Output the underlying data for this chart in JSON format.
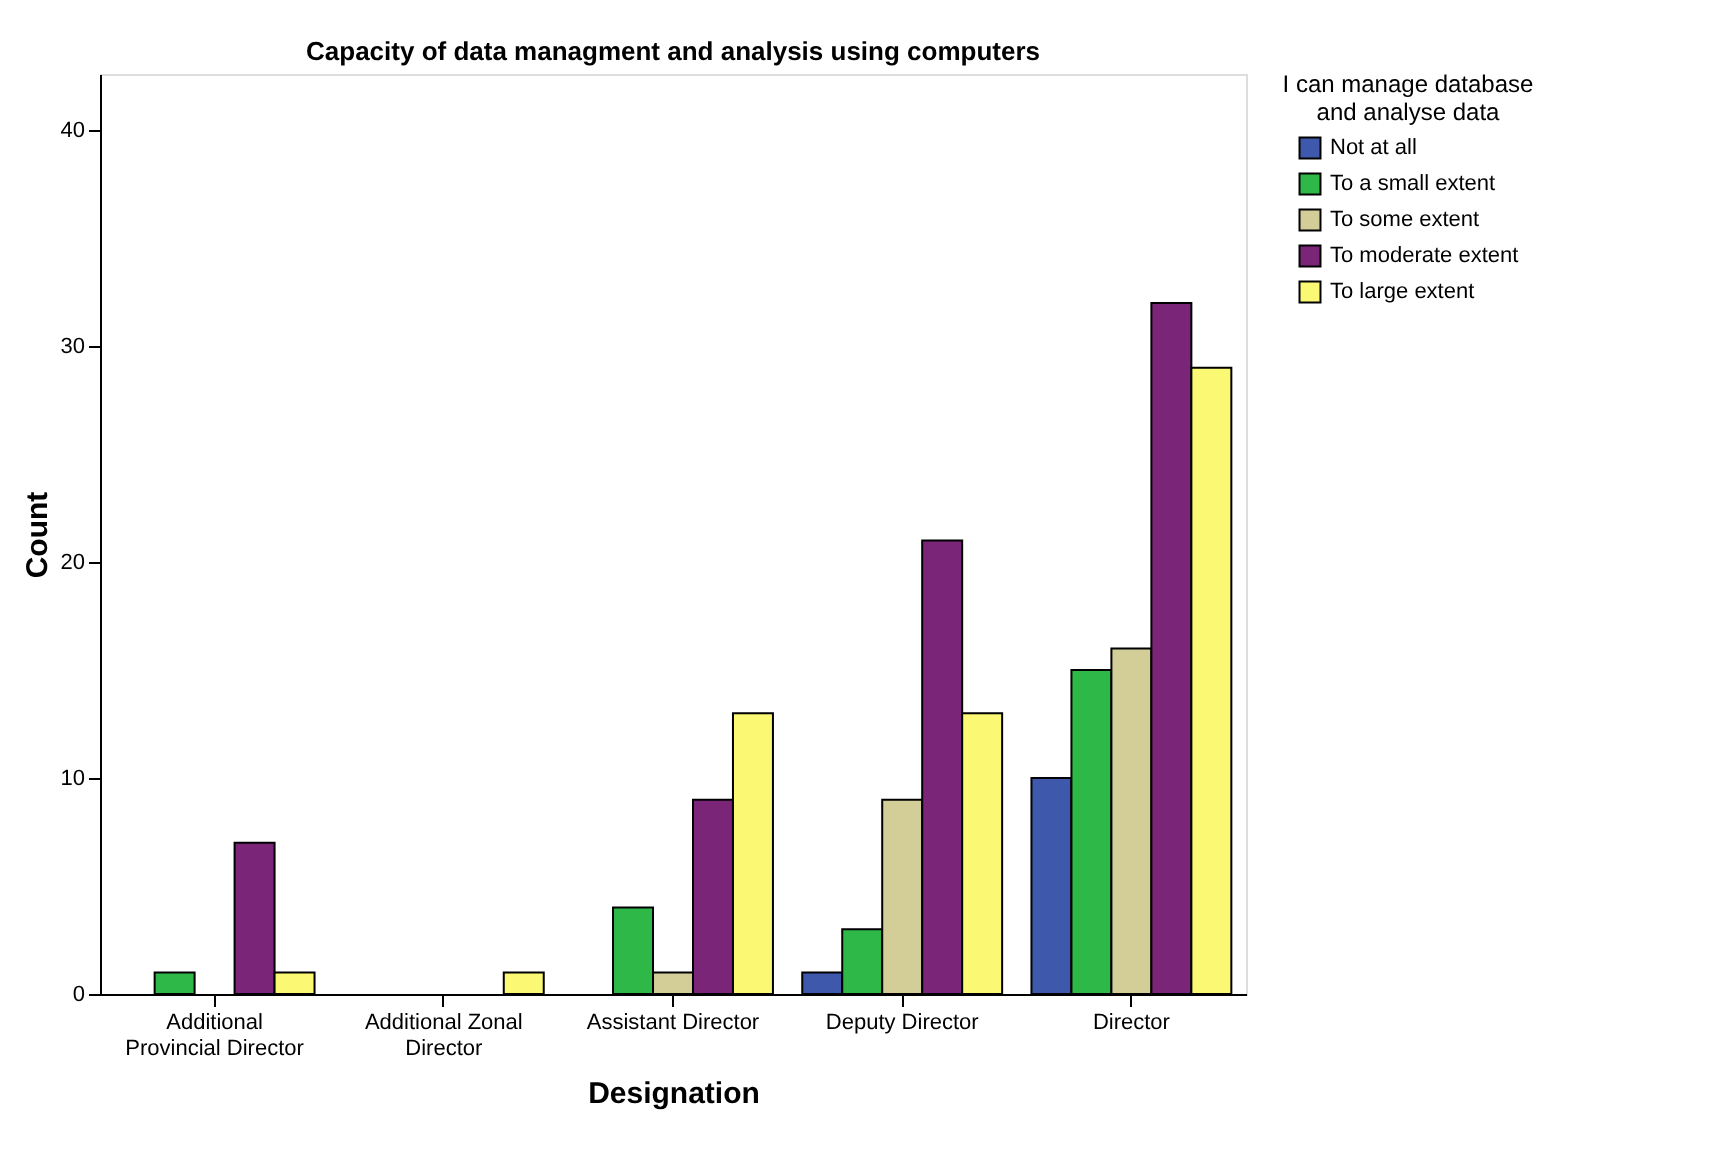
{
  "chart_data": {
    "type": "bar",
    "title": "Capacity of data managment and analysis using computers",
    "xlabel": "Designation",
    "ylabel": "Count",
    "legend_title": "I can manage database and analyse data",
    "categories": [
      "Additional Provincial Director",
      "Additional Zonal Director",
      "Assistant Director",
      "Deputy Director",
      "Director"
    ],
    "series": [
      {
        "name": "Not at all",
        "color": "#3e58ac",
        "values": [
          null,
          null,
          null,
          1,
          10
        ]
      },
      {
        "name": "To a small extent",
        "color": "#2eb848",
        "values": [
          1,
          null,
          4,
          3,
          15
        ]
      },
      {
        "name": "To some extent",
        "color": "#d3ce97",
        "values": [
          null,
          null,
          1,
          9,
          16
        ]
      },
      {
        "name": "To moderate extent",
        "color": "#7b2578",
        "values": [
          7,
          null,
          9,
          21,
          32
        ]
      },
      {
        "name": "To large extent",
        "color": "#fbf873",
        "values": [
          1,
          1,
          13,
          13,
          29
        ]
      }
    ],
    "ylim": [
      0,
      42.6
    ],
    "yticks": [
      0,
      10,
      20,
      30,
      40
    ],
    "grid": false,
    "legend": "right"
  }
}
